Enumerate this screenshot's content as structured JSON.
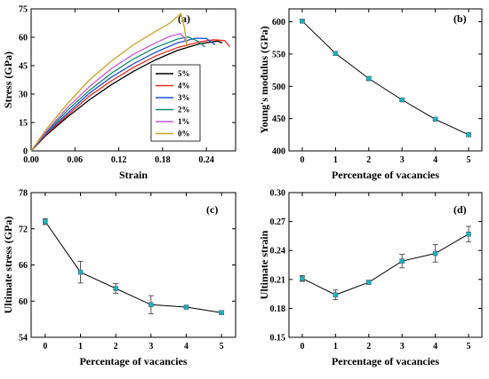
{
  "figure": {
    "panels": [
      {
        "label": "(a)"
      },
      {
        "label": "(b)"
      },
      {
        "label": "(c)"
      },
      {
        "label": "(d)"
      }
    ]
  },
  "chart_data": [
    {
      "type": "line",
      "panel_label": "(a)",
      "xlabel": "Strain",
      "ylabel": "Stress (GPa)",
      "xlim": [
        0.0,
        0.28
      ],
      "ylim": [
        0,
        75
      ],
      "xticks": [
        "0.00",
        "0.06",
        "0.12",
        "0.18",
        "0.24"
      ],
      "yticks": [
        "0",
        "15",
        "30",
        "45",
        "60",
        "75"
      ],
      "legend_position": "center-right",
      "series": [
        {
          "name": "5%",
          "color": "#000000",
          "x": [
            0,
            0.02,
            0.05,
            0.08,
            0.11,
            0.14,
            0.17,
            0.2,
            0.23,
            0.255,
            0.262
          ],
          "y": [
            0,
            8,
            18,
            27,
            35,
            42,
            48,
            53,
            56.5,
            58.0,
            57
          ]
        },
        {
          "name": "4%",
          "color": "#e8291c",
          "x": [
            0,
            0.02,
            0.05,
            0.08,
            0.11,
            0.14,
            0.17,
            0.2,
            0.23,
            0.25,
            0.265,
            0.272
          ],
          "y": [
            0,
            8.5,
            19,
            29,
            37,
            44,
            50,
            54.5,
            57.5,
            58.7,
            58.2,
            55
          ]
        },
        {
          "name": "3%",
          "color": "#1f4fd1",
          "x": [
            0,
            0.02,
            0.05,
            0.08,
            0.11,
            0.14,
            0.17,
            0.2,
            0.225,
            0.24,
            0.252
          ],
          "y": [
            0,
            9,
            20,
            30.5,
            39,
            46,
            52,
            57,
            59.5,
            59.4,
            56
          ]
        },
        {
          "name": "2%",
          "color": "#0f8a6b",
          "x": [
            0,
            0.02,
            0.05,
            0.08,
            0.11,
            0.14,
            0.17,
            0.2,
            0.215,
            0.228,
            0.238
          ],
          "y": [
            0,
            9.5,
            21.5,
            32,
            41,
            48.5,
            54.5,
            59,
            60.2,
            58,
            55
          ]
        },
        {
          "name": "1%",
          "color": "#c45bd6",
          "x": [
            0,
            0.02,
            0.05,
            0.08,
            0.11,
            0.14,
            0.17,
            0.19,
            0.205,
            0.214
          ],
          "y": [
            0,
            10,
            23,
            34,
            43.5,
            51,
            57,
            60.5,
            62,
            57
          ]
        },
        {
          "name": "0%",
          "color": "#c9a227",
          "x": [
            0,
            0.02,
            0.05,
            0.08,
            0.11,
            0.14,
            0.17,
            0.19,
            0.205,
            0.21,
            0.213
          ],
          "y": [
            0,
            11,
            25,
            37.5,
            47.5,
            56,
            63,
            67.5,
            72.5,
            65,
            55
          ]
        }
      ]
    },
    {
      "type": "line",
      "panel_label": "(b)",
      "xlabel": "Percentage of vacancies",
      "ylabel": "Young's modulus (GPa)",
      "xlim": [
        -0.4,
        5.4
      ],
      "ylim": [
        400,
        620
      ],
      "xticks": [
        "0",
        "1",
        "2",
        "3",
        "4",
        "5"
      ],
      "yticks": [
        "400",
        "450",
        "500",
        "550",
        "600"
      ],
      "x": [
        0,
        1,
        2,
        3,
        4,
        5
      ],
      "y": [
        601,
        551,
        512,
        479,
        449,
        425
      ],
      "yerr": [
        2,
        3,
        3,
        1.5,
        1.5,
        2
      ]
    },
    {
      "type": "line",
      "panel_label": "(c)",
      "xlabel": "Percentage of vacancies",
      "ylabel": "Ultimate stress (GPa)",
      "xlim": [
        -0.4,
        5.4
      ],
      "ylim": [
        54,
        78
      ],
      "xticks": [
        "0",
        "1",
        "2",
        "3",
        "4",
        "5"
      ],
      "yticks": [
        "54",
        "60",
        "66",
        "72",
        "78"
      ],
      "x": [
        0,
        1,
        2,
        3,
        4,
        5
      ],
      "y": [
        73.2,
        64.8,
        62.1,
        59.4,
        59.0,
        58.1
      ],
      "yerr": [
        0.5,
        1.8,
        0.8,
        1.5,
        0.2,
        0.3
      ]
    },
    {
      "type": "line",
      "panel_label": "(d)",
      "xlabel": "Percentage of vacancies",
      "ylabel": "Ultimate strain",
      "xlim": [
        -0.4,
        5.4
      ],
      "ylim": [
        0.15,
        0.3
      ],
      "xticks": [
        "0",
        "1",
        "2",
        "3",
        "4",
        "5"
      ],
      "yticks": [
        "0.15",
        "0.18",
        "0.21",
        "0.24",
        "0.27",
        "0.30"
      ],
      "x": [
        0,
        1,
        2,
        3,
        4,
        5
      ],
      "y": [
        0.211,
        0.194,
        0.207,
        0.229,
        0.237,
        0.257
      ],
      "yerr": [
        0.003,
        0.005,
        0.002,
        0.007,
        0.009,
        0.008
      ]
    }
  ],
  "colors": {
    "marker_fill": "#17b3c4",
    "marker_edge": "#555555",
    "line": "#000000",
    "errorbar": "#555555"
  }
}
